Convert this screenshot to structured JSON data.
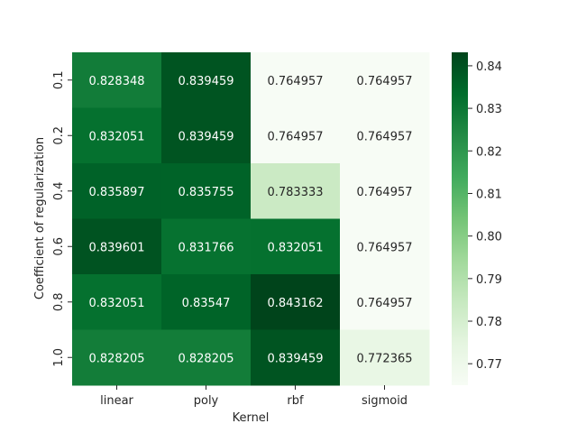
{
  "chart_data": {
    "type": "heatmap",
    "title": "",
    "xlabel": "Kernel",
    "ylabel": "Coefficient of regularization",
    "x_categories": [
      "linear",
      "poly",
      "rbf",
      "sigmoid"
    ],
    "y_categories": [
      "0.1",
      "0.2",
      "0.4",
      "0.6",
      "0.8",
      "1.0"
    ],
    "values": [
      [
        0.828348,
        0.839459,
        0.764957,
        0.764957
      ],
      [
        0.832051,
        0.839459,
        0.764957,
        0.764957
      ],
      [
        0.835897,
        0.835755,
        0.783333,
        0.764957
      ],
      [
        0.839601,
        0.831766,
        0.832051,
        0.764957
      ],
      [
        0.832051,
        0.83547,
        0.843162,
        0.764957
      ],
      [
        0.828205,
        0.828205,
        0.839459,
        0.772365
      ]
    ],
    "cell_labels": [
      [
        "0.828348",
        "0.839459",
        "0.764957",
        "0.764957"
      ],
      [
        "0.832051",
        "0.839459",
        "0.764957",
        "0.764957"
      ],
      [
        "0.835897",
        "0.835755",
        "0.783333",
        "0.764957"
      ],
      [
        "0.839601",
        "0.831766",
        "0.832051",
        "0.764957"
      ],
      [
        "0.832051",
        "0.83547",
        "0.843162",
        "0.764957"
      ],
      [
        "0.828205",
        "0.828205",
        "0.839459",
        "0.772365"
      ]
    ],
    "colormap": "Greens",
    "colorbar": {
      "ticks": [
        0.77,
        0.78,
        0.79,
        0.8,
        0.81,
        0.82,
        0.83,
        0.84
      ],
      "tick_labels": [
        "0.77",
        "0.78",
        "0.79",
        "0.80",
        "0.81",
        "0.82",
        "0.83",
        "0.84"
      ],
      "range": [
        0.764957,
        0.843162
      ]
    },
    "grid": false
  }
}
